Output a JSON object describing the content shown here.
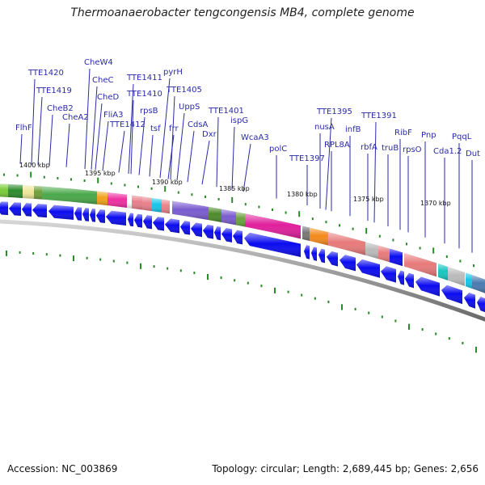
{
  "title": "Thermoanaerobacter tengcongensis MB4, complete genome",
  "footer": {
    "accession": "Accession: NC_003869",
    "summary": "Topology: circular; Length: 2,689,445 bp; Genes: 2,656"
  },
  "scale_labels": [
    "1400 kbp",
    "1395 kbp",
    "1390 kbp",
    "1385 kbp",
    "1380 kbp",
    "1375 kbp",
    "1370 kbp"
  ],
  "gene_labels": [
    "FlhF",
    "TTE1420",
    "TTE1419",
    "CheB2",
    "CheA2",
    "CheW4",
    "CheC",
    "CheD",
    "FliA3",
    "TTE1412",
    "TTE1411",
    "TTE1410",
    "rpsB",
    "tsf",
    "pyrH",
    "frr",
    "TTE1405",
    "UppS",
    "CdsA",
    "Dxr",
    "TTE1401",
    "ispG",
    "WcaA3",
    "polC",
    "TTE1397",
    "nusA",
    "TTE1395",
    "RPL8A",
    "infB",
    "rbfA",
    "TTE1391",
    "truB",
    "RibF",
    "rpsO",
    "Pnp",
    "Cda1.2",
    "PqqL",
    "Dut"
  ],
  "colors": {
    "label_text": "#2a2aa8",
    "gene_arrow": "#0b0bf0",
    "tick": "#2a8a2a",
    "backbone": "#777777"
  }
}
